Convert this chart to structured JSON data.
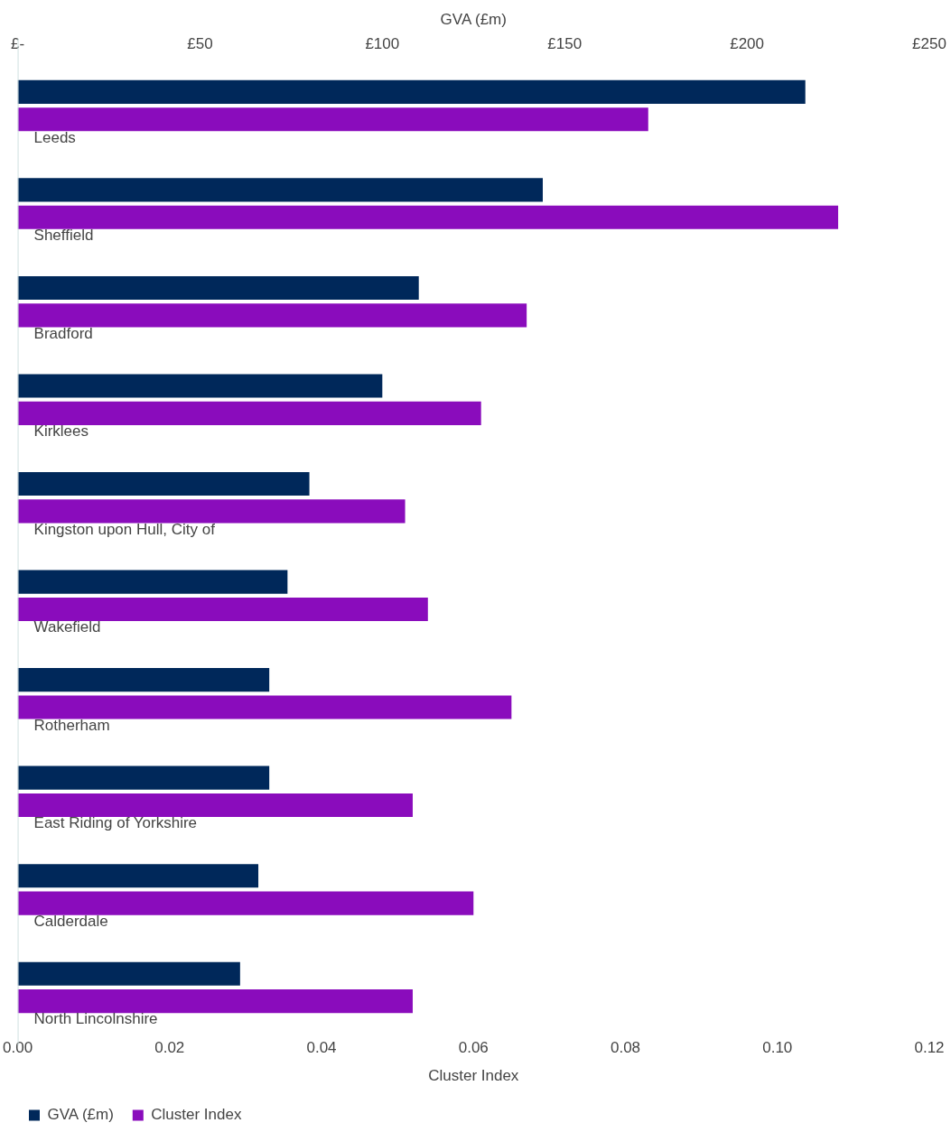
{
  "chart_data": {
    "type": "bar",
    "orientation": "horizontal",
    "x2label": "GVA (£m)",
    "xlabel": "Cluster Index",
    "categories": [
      "Leeds",
      "Sheffield",
      "Bradford",
      "Kirklees",
      "Kingston upon Hull, City of",
      "Wakefield",
      "Rotherham",
      "East Riding of Yorkshire",
      "Calderdale",
      "North Lincolnshire"
    ],
    "series": [
      {
        "name": "GVA (£m)",
        "color": "#00285a",
        "axis": "x2",
        "values": [
          216,
          144,
          110,
          100,
          80,
          74,
          69,
          69,
          66,
          61
        ]
      },
      {
        "name": "Cluster Index",
        "color": "#8a0cbc",
        "values": [
          0.083,
          0.108,
          0.067,
          0.061,
          0.051,
          0.054,
          0.065,
          0.052,
          0.06,
          0.052
        ]
      }
    ],
    "xlim": [
      0,
      0.12
    ],
    "xticks": [
      {
        "value": 0,
        "label": "0.00"
      },
      {
        "value": 0.02,
        "label": "0.02"
      },
      {
        "value": 0.04,
        "label": "0.04"
      },
      {
        "value": 0.06,
        "label": "0.06"
      },
      {
        "value": 0.08,
        "label": "0.08"
      },
      {
        "value": 0.1,
        "label": "0.10"
      },
      {
        "value": 0.12,
        "label": "0.12"
      }
    ],
    "x2lim": [
      0,
      250
    ],
    "x2ticks": [
      {
        "value": 0,
        "label": "£-"
      },
      {
        "value": 50,
        "label": "£50"
      },
      {
        "value": 100,
        "label": "£100"
      },
      {
        "value": 150,
        "label": "£150"
      },
      {
        "value": 200,
        "label": "£200"
      },
      {
        "value": 250,
        "label": "£250"
      }
    ],
    "grid": false,
    "legend": "bottom left"
  }
}
